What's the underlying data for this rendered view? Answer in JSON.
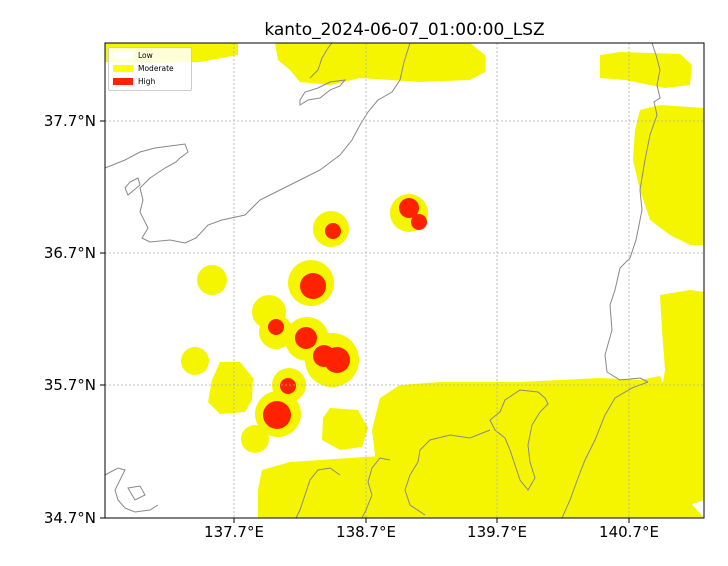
{
  "title": "kanto_2024-06-07_01:00:00_LSZ",
  "lat_ticks": [
    "37.7°N",
    "36.7°N",
    "35.7°N",
    "34.7°N"
  ],
  "lon_ticks": [
    "137.7°E",
    "138.7°E",
    "139.7°E",
    "140.7°E"
  ],
  "legend": {
    "items": [
      {
        "label": "Low",
        "color": "#ffffff"
      },
      {
        "label": "Moderate",
        "color": "#ffff00"
      },
      {
        "label": "High",
        "color": "#ff2200"
      }
    ]
  },
  "colors": {
    "moderate": "#f5f500",
    "high": "#ff2200",
    "coastline": "#888888",
    "grid": "#b0b0b0"
  }
}
